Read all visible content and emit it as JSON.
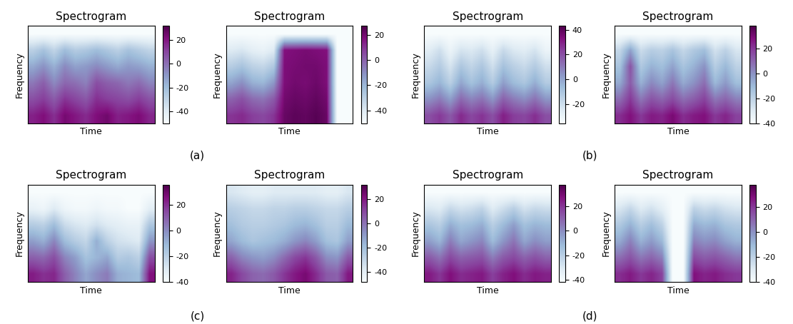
{
  "chart_data": [
    {
      "type": "heatmap",
      "title": "Spectrogram",
      "x_label": "Time",
      "y_label": "Frequency",
      "color": "BuPu",
      "tick_labels": false,
      "cells": [
        [
          18,
          22,
          15,
          24,
          20,
          16,
          22,
          25,
          18,
          20,
          23,
          17
        ],
        [
          8,
          12,
          5,
          14,
          10,
          6,
          15,
          12,
          10,
          8,
          12,
          7
        ],
        [
          -2,
          4,
          -6,
          2,
          0,
          -4,
          8,
          4,
          2,
          -2,
          1,
          -5
        ],
        [
          -14,
          -8,
          -16,
          -6,
          -12,
          -10,
          -6,
          -10,
          -14,
          -10,
          -12,
          -16
        ],
        [
          -28,
          -22,
          -30,
          -20,
          -26,
          -24,
          -20,
          -24,
          -28,
          -22,
          -26,
          -30
        ],
        [
          -50,
          -50,
          -50,
          -50,
          -50,
          -50,
          -50,
          -50,
          -50,
          -50,
          -50,
          -50
        ]
      ],
      "colorbar": {
        "range": [
          -50,
          32
        ],
        "ticks": [
          -40,
          -20,
          0,
          20
        ]
      }
    },
    {
      "type": "heatmap",
      "title": "Spectrogram",
      "x_label": "Time",
      "y_label": "Frequency",
      "color": "BuPu",
      "tick_labels": false,
      "cells": [
        [
          10,
          12,
          8,
          6,
          10,
          22,
          24,
          23,
          25,
          22,
          -50,
          -50
        ],
        [
          0,
          4,
          -2,
          -4,
          2,
          20,
          22,
          21,
          23,
          20,
          -50,
          -50
        ],
        [
          -15,
          -10,
          -18,
          -20,
          -12,
          18,
          20,
          19,
          21,
          18,
          -50,
          -50
        ],
        [
          -28,
          -24,
          -30,
          -32,
          -26,
          18,
          19,
          20,
          20,
          18,
          -50,
          -50
        ],
        [
          -40,
          -38,
          -42,
          -44,
          -40,
          17,
          18,
          19,
          18,
          17,
          -50,
          -50
        ],
        [
          -50,
          -50,
          -50,
          -50,
          -50,
          -50,
          -50,
          -50,
          -50,
          -50,
          -50,
          -50
        ]
      ],
      "colorbar": {
        "range": [
          -50,
          27
        ],
        "ticks": [
          -40,
          -20,
          0,
          20
        ]
      }
    },
    {
      "type": "heatmap",
      "title": "Spectrogram",
      "x_label": "Time",
      "y_label": "Frequency",
      "color": "BuPu",
      "tick_labels": false,
      "cells": [
        [
          20,
          25,
          18,
          28,
          22,
          26,
          20,
          30,
          24,
          22,
          27,
          20
        ],
        [
          5,
          10,
          2,
          14,
          8,
          12,
          4,
          16,
          10,
          6,
          12,
          4
        ],
        [
          -10,
          -4,
          -14,
          0,
          -8,
          -2,
          -12,
          2,
          -6,
          -10,
          -2,
          -12
        ],
        [
          -18,
          -12,
          -22,
          -10,
          -16,
          -10,
          -20,
          -8,
          -14,
          -18,
          -12,
          -20
        ],
        [
          -26,
          -20,
          -30,
          -22,
          -24,
          -20,
          -28,
          -18,
          -24,
          -26,
          -22,
          -30
        ],
        [
          -35,
          -35,
          -35,
          -35,
          -35,
          -35,
          -35,
          -35,
          -35,
          -35,
          -35,
          -35
        ]
      ],
      "colorbar": {
        "range": [
          -35,
          43
        ],
        "ticks": [
          -20,
          0,
          20,
          40
        ]
      }
    },
    {
      "type": "heatmap",
      "title": "Spectrogram",
      "x_label": "Time",
      "y_label": "Frequency",
      "color": "BuPu",
      "tick_labels": false,
      "cells": [
        [
          22,
          28,
          20,
          26,
          24,
          30,
          22,
          26,
          28,
          20,
          24,
          18
        ],
        [
          8,
          20,
          6,
          14,
          10,
          16,
          8,
          12,
          18,
          6,
          10,
          4
        ],
        [
          -6,
          12,
          -8,
          2,
          -4,
          6,
          -6,
          0,
          8,
          -10,
          -2,
          -12
        ],
        [
          -14,
          14,
          -16,
          -8,
          -12,
          -4,
          -14,
          -8,
          0,
          -18,
          -10,
          -20
        ],
        [
          -22,
          -4,
          -24,
          -18,
          -20,
          -14,
          -22,
          -16,
          -12,
          -26,
          -20,
          -28
        ],
        [
          -40,
          -40,
          -40,
          -40,
          -40,
          -40,
          -40,
          -40,
          -40,
          -40,
          -40,
          -40
        ]
      ],
      "colorbar": {
        "range": [
          -40,
          38
        ],
        "ticks": [
          -40,
          -20,
          0,
          20
        ]
      }
    },
    {
      "type": "heatmap",
      "title": "Spectrogram",
      "x_label": "Time",
      "y_label": "Frequency",
      "color": "BuPu",
      "tick_labels": false,
      "cells": [
        [
          24,
          20,
          22,
          10,
          2,
          -6,
          0,
          4,
          -8,
          -10,
          -12,
          26
        ],
        [
          10,
          8,
          14,
          2,
          -4,
          -14,
          -10,
          -6,
          -18,
          -16,
          -20,
          14
        ],
        [
          -4,
          -8,
          2,
          -12,
          -18,
          -22,
          -8,
          -20,
          -26,
          -28,
          -30,
          -2
        ],
        [
          -18,
          -20,
          -12,
          -24,
          -28,
          -30,
          -26,
          -30,
          -32,
          -34,
          -34,
          -16
        ],
        [
          -34,
          -36,
          -30,
          -36,
          -38,
          -38,
          -36,
          -38,
          -38,
          -40,
          -40,
          -32
        ],
        [
          -40,
          -40,
          -40,
          -40,
          -40,
          -40,
          -40,
          -40,
          -40,
          -40,
          -40,
          -40
        ]
      ],
      "colorbar": {
        "range": [
          -40,
          36
        ],
        "ticks": [
          -40,
          -20,
          0,
          20
        ]
      }
    },
    {
      "type": "heatmap",
      "title": "Spectrogram",
      "x_label": "Time",
      "y_label": "Frequency",
      "color": "BuPu",
      "tick_labels": false,
      "cells": [
        [
          18,
          10,
          4,
          2,
          6,
          14,
          20,
          24,
          16,
          6,
          4,
          20
        ],
        [
          4,
          -4,
          -8,
          -10,
          -6,
          2,
          10,
          14,
          6,
          -6,
          -8,
          6
        ],
        [
          -12,
          -18,
          -22,
          -20,
          -18,
          -14,
          -8,
          -4,
          -10,
          -20,
          -22,
          -10
        ],
        [
          -20,
          -24,
          -26,
          -26,
          -24,
          -22,
          -18,
          -16,
          -20,
          -26,
          -26,
          -18
        ],
        [
          -26,
          -28,
          -30,
          -30,
          -28,
          -28,
          -26,
          -26,
          -28,
          -30,
          -30,
          -26
        ],
        [
          -36,
          -38,
          -40,
          -40,
          -38,
          -38,
          -38,
          -38,
          -38,
          -40,
          -40,
          -36
        ]
      ],
      "colorbar": {
        "range": [
          -48,
          32
        ],
        "ticks": [
          -40,
          -20,
          0,
          20
        ]
      }
    },
    {
      "type": "heatmap",
      "title": "Spectrogram",
      "x_label": "Time",
      "y_label": "Frequency",
      "color": "BuPu",
      "tick_labels": false,
      "cells": [
        [
          26,
          20,
          28,
          22,
          24,
          26,
          18,
          24,
          28,
          22,
          26,
          24
        ],
        [
          12,
          6,
          16,
          10,
          12,
          14,
          4,
          12,
          16,
          10,
          14,
          10
        ],
        [
          -4,
          -10,
          4,
          -6,
          -2,
          2,
          -12,
          -2,
          6,
          -6,
          0,
          -4
        ],
        [
          -16,
          -20,
          -8,
          -14,
          -12,
          -8,
          -20,
          -12,
          -4,
          -14,
          -10,
          -12
        ],
        [
          -30,
          -32,
          -24,
          -28,
          -26,
          -22,
          -32,
          -26,
          -20,
          -28,
          -24,
          -26
        ],
        [
          -42,
          -42,
          -42,
          -42,
          -42,
          -42,
          -42,
          -42,
          -42,
          -42,
          -42,
          -42
        ]
      ],
      "colorbar": {
        "range": [
          -42,
          38
        ],
        "ticks": [
          -40,
          -20,
          0,
          20
        ]
      }
    },
    {
      "type": "heatmap",
      "title": "Spectrogram",
      "x_label": "Time",
      "y_label": "Frequency",
      "color": "BuPu",
      "tick_labels": false,
      "cells": [
        [
          22,
          26,
          20,
          24,
          18,
          -40,
          -40,
          28,
          24,
          26,
          22,
          20
        ],
        [
          8,
          14,
          6,
          10,
          4,
          -40,
          -40,
          16,
          12,
          14,
          10,
          6
        ],
        [
          -6,
          4,
          -8,
          -2,
          -10,
          -40,
          -40,
          4,
          0,
          2,
          -4,
          -8
        ],
        [
          -16,
          -8,
          -18,
          -12,
          -20,
          -40,
          -40,
          -6,
          -10,
          -8,
          -14,
          -16
        ],
        [
          -28,
          -22,
          -30,
          -26,
          -32,
          -40,
          -40,
          -20,
          -24,
          -22,
          -26,
          -28
        ],
        [
          -40,
          -40,
          -40,
          -40,
          -40,
          -40,
          -40,
          -40,
          -40,
          -40,
          -40,
          -40
        ]
      ],
      "colorbar": {
        "range": [
          -40,
          38
        ],
        "ticks": [
          -40,
          -20,
          0,
          20
        ]
      }
    }
  ],
  "captions": [
    "(a)",
    "(b)",
    "(c)",
    "(d)"
  ]
}
